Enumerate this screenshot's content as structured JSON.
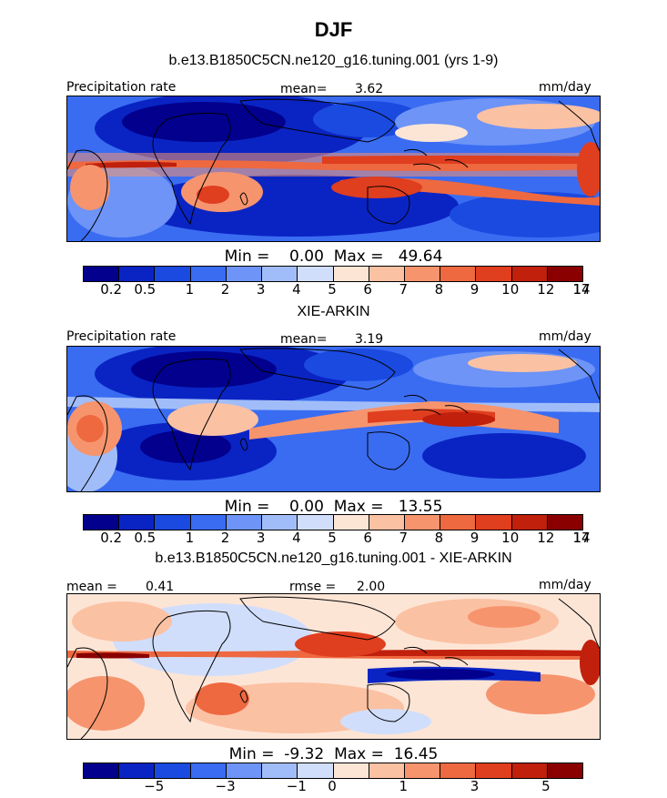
{
  "title": "DJF",
  "colors": {
    "precip_scale": [
      "#02008c",
      "#0a24c4",
      "#1a4ae0",
      "#3a6cf2",
      "#6d94f6",
      "#a1bdf9",
      "#d0defb",
      "#fde5d6",
      "#fbc1a3",
      "#f6946d",
      "#ee6840",
      "#df3e1f",
      "#c0200c",
      "#8a0000"
    ],
    "diff_scale": [
      "#02008c",
      "#0a24c4",
      "#1a4ae0",
      "#3a6cf2",
      "#6d94f6",
      "#a1bdf9",
      "#d0defb",
      "#fde5d6",
      "#fbc1a3",
      "#f6946d",
      "#ee6840",
      "#df3e1f",
      "#c0200c",
      "#8a0000"
    ]
  },
  "chart_data": [
    {
      "type": "heatmap",
      "title": "b.e13.B1850C5CN.ne120_g16.tuning.001 (yrs 1-9)",
      "left_label": "Precipitation rate",
      "mean_label": "mean=",
      "mean_value": "3.62",
      "units": "mm/day",
      "min_label": "Min =",
      "min_value": "0.00",
      "max_label": "Max =",
      "max_value": "49.64",
      "colorbar_ticks": [
        "0.2",
        "0.5",
        "1",
        "2",
        "3",
        "4",
        "5",
        "6",
        "7",
        "8",
        "9",
        "10",
        "12",
        "14",
        "17"
      ]
    },
    {
      "type": "heatmap",
      "title": "XIE-ARKIN",
      "left_label": "Precipitation rate",
      "mean_label": "mean=",
      "mean_value": "3.19",
      "units": "mm/day",
      "min_label": "Min =",
      "min_value": "0.00",
      "max_label": "Max =",
      "max_value": "13.55",
      "colorbar_ticks": [
        "0.2",
        "0.5",
        "1",
        "2",
        "3",
        "4",
        "5",
        "6",
        "7",
        "8",
        "9",
        "10",
        "12",
        "14",
        "17"
      ]
    },
    {
      "type": "heatmap",
      "title": "b.e13.B1850C5CN.ne120_g16.tuning.001 - XIE-ARKIN",
      "mean_label": "mean =",
      "mean_value": "0.41",
      "rmse_label": "rmse =",
      "rmse_value": "2.00",
      "units": "mm/day",
      "min_label": "Min =",
      "min_value": "-9.32",
      "max_label": "Max =",
      "max_value": "16.45",
      "colorbar_ticks": [
        "−5",
        "−3",
        "−1",
        "0",
        "1",
        "3",
        "5"
      ]
    }
  ]
}
